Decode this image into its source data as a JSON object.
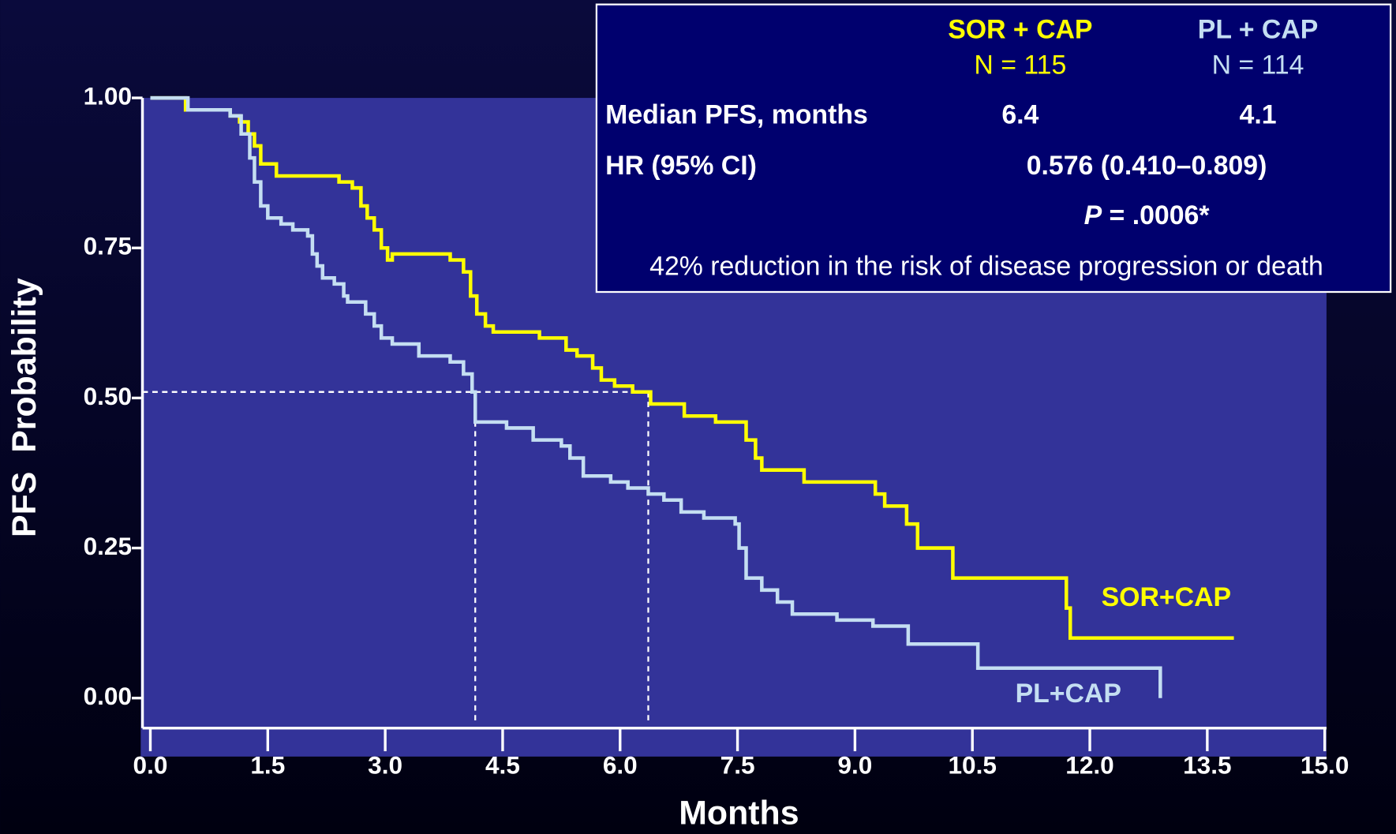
{
  "chart_data": {
    "type": "step",
    "x_label": "Months",
    "y_label": "PFS  Probability",
    "xlim": [
      -0.1,
      15
    ],
    "ylim": [
      -0.05,
      1.0
    ],
    "xticks": [
      {
        "value": 0,
        "label": "0.0"
      },
      1.5,
      {
        "value": 3,
        "label": "3.0"
      },
      4.5,
      {
        "value": 6,
        "label": "6.0"
      },
      7.5,
      {
        "value": 9,
        "label": "9.0"
      },
      10.5,
      {
        "value": 12,
        "label": "12.0"
      },
      13.5,
      {
        "value": 15,
        "label": "15.0"
      }
    ],
    "yticks": [
      {
        "value": 1,
        "label": "1.00"
      },
      {
        "value": 0.75,
        "label": "0.75"
      },
      {
        "value": 0.5,
        "label": "0.50"
      },
      {
        "value": 0.25,
        "label": "0.25"
      },
      {
        "value": 0,
        "label": "0.00"
      }
    ],
    "series": [
      {
        "name": "SOR+CAP",
        "color": "#ffff00",
        "x": [
          0,
          0.45,
          1.02,
          1.14,
          1.25,
          1.33,
          1.41,
          1.61,
          2.41,
          2.58,
          2.69,
          2.77,
          2.86,
          2.95,
          3.03,
          3.09,
          3.83,
          4.0,
          4.09,
          4.17,
          4.28,
          4.38,
          4.97,
          5.31,
          5.45,
          5.65,
          5.76,
          5.93,
          6.16,
          6.39,
          6.82,
          7.22,
          7.61,
          7.73,
          7.81,
          8.35,
          9.26,
          9.38,
          9.66,
          9.8,
          10.25,
          11.7,
          11.75,
          13.84
        ],
        "values": [
          1.0,
          0.98,
          0.97,
          0.96,
          0.94,
          0.92,
          0.89,
          0.87,
          0.86,
          0.85,
          0.82,
          0.8,
          0.78,
          0.75,
          0.73,
          0.74,
          0.73,
          0.71,
          0.67,
          0.64,
          0.62,
          0.61,
          0.6,
          0.58,
          0.57,
          0.55,
          0.53,
          0.52,
          0.51,
          0.49,
          0.47,
          0.46,
          0.43,
          0.4,
          0.38,
          0.36,
          0.34,
          0.32,
          0.29,
          0.25,
          0.2,
          0.15,
          0.1,
          0.1
        ]
      },
      {
        "name": "PL+CAP",
        "color": "#c4def2",
        "x": [
          0,
          0.48,
          1.02,
          1.16,
          1.27,
          1.33,
          1.41,
          1.5,
          1.67,
          1.82,
          2.01,
          2.07,
          2.13,
          2.2,
          2.35,
          2.47,
          2.52,
          2.75,
          2.86,
          2.95,
          3.09,
          3.43,
          3.83,
          4.0,
          4.11,
          4.15,
          4.55,
          4.89,
          5.25,
          5.36,
          5.53,
          5.88,
          6.1,
          6.36,
          6.56,
          6.78,
          7.07,
          7.47,
          7.52,
          7.61,
          7.81,
          8.01,
          8.2,
          8.77,
          9.23,
          9.68,
          10.57,
          12.9,
          12.9
        ],
        "values": [
          1.0,
          0.98,
          0.97,
          0.94,
          0.9,
          0.86,
          0.82,
          0.8,
          0.79,
          0.78,
          0.77,
          0.74,
          0.72,
          0.7,
          0.69,
          0.67,
          0.66,
          0.64,
          0.62,
          0.6,
          0.59,
          0.57,
          0.56,
          0.54,
          0.51,
          0.46,
          0.45,
          0.43,
          0.42,
          0.4,
          0.37,
          0.36,
          0.35,
          0.34,
          0.33,
          0.31,
          0.3,
          0.29,
          0.25,
          0.2,
          0.18,
          0.16,
          0.14,
          0.13,
          0.12,
          0.09,
          0.05,
          0.05,
          0.0
        ]
      }
    ],
    "median_lines": {
      "y": 0.51,
      "x": [
        4.15,
        6.36
      ]
    },
    "table": {
      "col1": {
        "name": "SOR + CAP",
        "n": "N = 115"
      },
      "col2": {
        "name": "PL + CAP",
        "n": "N = 114"
      },
      "median": {
        "label": "Median PFS, months",
        "v1": "6.4",
        "v2": "4.1"
      },
      "hr": {
        "label": "HR (95% CI)",
        "value": "0.576 (0.410–0.809)"
      },
      "p": {
        "symbol": "P",
        "value": " = .0006*"
      },
      "note": "42% reduction in the risk of disease progression or death"
    }
  }
}
